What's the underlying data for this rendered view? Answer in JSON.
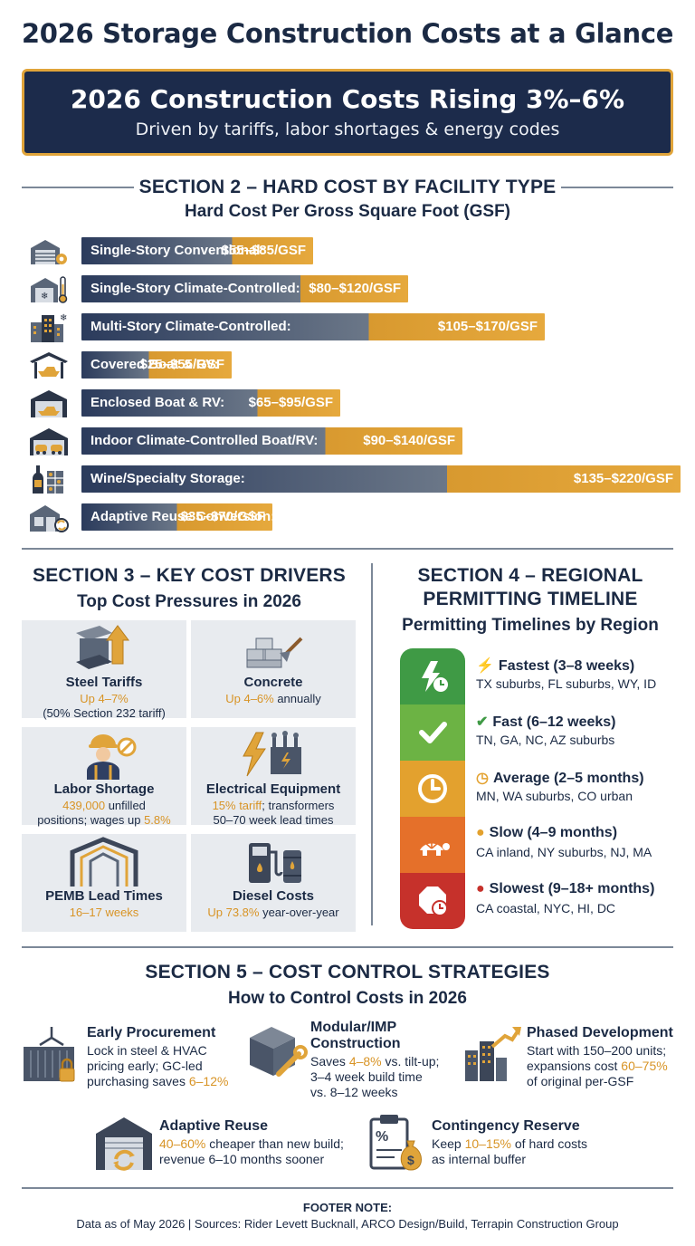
{
  "title": "2026 Storage Construction Costs at a Glance",
  "banner": {
    "headline": "2026 Construction Costs Rising 3%–6%",
    "subtitle": "Driven by tariffs, labor shortages & energy codes"
  },
  "colors": {
    "navy": "#1c2b4b",
    "gold": "#e0a43a",
    "slate": "#4d5d75",
    "green": "#3f9a45",
    "yellow": "#e3a12e",
    "orange": "#e5702a",
    "red": "#c6312b"
  },
  "section2": {
    "title": "SECTION 2 – HARD COST BY FACILITY TYPE",
    "subtitle": "Hard Cost Per Gross Square Foot (GSF)"
  },
  "chart_data": {
    "type": "bar",
    "orientation": "horizontal",
    "title": "Hard Cost Per Gross Square Foot (GSF)",
    "unit": "$/GSF",
    "categories": [
      "Single-Story Conventional:",
      "Single-Story Climate-Controlled:",
      "Multi-Story Climate-Controlled:",
      "Covered Boat & RV:",
      "Enclosed Boat & RV:",
      "Indoor Climate-Controlled Boat/RV:",
      "Wine/Specialty Storage:",
      "Adaptive Reuse Conversion:"
    ],
    "low": [
      55,
      80,
      105,
      25,
      65,
      90,
      135,
      35
    ],
    "high": [
      85,
      120,
      170,
      55,
      95,
      140,
      220,
      70
    ],
    "value_labels": [
      "$55–$85/GSF",
      "$80–$120/GSF",
      "$105–$170/GSF",
      "$25–$55/GSF",
      "$65–$95/GSF",
      "$90–$140/GSF",
      "$135–$220/GSF",
      "$35–$70/GSF"
    ],
    "icons": [
      "garage-gear-icon",
      "garage-thermometer-icon",
      "multistory-building-icon",
      "covered-boat-icon",
      "enclosed-boat-icon",
      "indoor-vehicle-icon",
      "wine-bottle-icon",
      "adaptive-reuse-icon"
    ]
  },
  "section3": {
    "title": "SECTION 3 – KEY COST DRIVERS",
    "subtitle": "Top Cost Pressures in 2026",
    "tiles": [
      {
        "icon": "steel-beam-arrow-icon",
        "title": "Steel Tariffs",
        "lines": [
          [
            "Up 4–7%",
            ""
          ],
          [
            "(50% Section 232 tariff)",
            ""
          ]
        ]
      },
      {
        "icon": "concrete-blocks-icon",
        "title": "Concrete",
        "lines": [
          [
            "Up 4–6%",
            " annually"
          ]
        ]
      },
      {
        "icon": "worker-icon",
        "title": "Labor Shortage",
        "lines": [
          [
            "439,000",
            " unfilled"
          ],
          [
            "positions; wages up ",
            "5.8%"
          ]
        ]
      },
      {
        "icon": "transformer-bolt-icon",
        "title": "Electrical Equipment",
        "lines": [
          [
            "15% tariff",
            "; transformers"
          ],
          [
            "50–70 week lead times",
            ""
          ]
        ]
      },
      {
        "icon": "pemb-frame-icon",
        "title": "PEMB Lead Times",
        "lines": [
          [
            "16–17 weeks",
            ""
          ]
        ]
      },
      {
        "icon": "fuel-pump-icon",
        "title": "Diesel Costs",
        "lines": [
          [
            "Up 73.8%",
            " year-over-year"
          ]
        ]
      }
    ]
  },
  "section4": {
    "title_line1": "SECTION 4 – REGIONAL",
    "title_line2": "PERMITTING TIMELINE",
    "subtitle": "Permitting Timelines by Region",
    "tiers": [
      {
        "name": "Fastest (3–8 weeks)",
        "regions": "TX suburbs, FL suburbs, WY, ID",
        "color": "#3f9a45",
        "icon": "lightning-clock-icon"
      },
      {
        "name": "Fast (6–12 weeks)",
        "regions": "TN, GA, NC, AZ suburbs",
        "color": "#6cb344",
        "icon": "checkmark-icon"
      },
      {
        "name": "Average (2–5 months)",
        "regions": "MN, WA suburbs, CO urban",
        "color": "#e3a12e",
        "icon": "clock-icon"
      },
      {
        "name": "Slow (4–9 months)",
        "regions": "CA inland, NY suburbs, NJ, MA",
        "color": "#e5702a",
        "icon": "turtle-icon"
      },
      {
        "name": "Slowest (9–18+ months)",
        "regions": "CA coastal, NYC, HI, DC",
        "color": "#c6312b",
        "icon": "stop-clock-icon"
      }
    ]
  },
  "section5": {
    "title": "SECTION 5 – COST CONTROL STRATEGIES",
    "subtitle": "How to Control Costs in 2026",
    "strategies": [
      {
        "icon": "container-lock-icon",
        "title": "Early Procurement",
        "lines": [
          [
            "Lock in steel & HVAC",
            ""
          ],
          [
            "pricing early; GC-led",
            ""
          ],
          [
            "purchasing saves ",
            "6–12%"
          ]
        ]
      },
      {
        "icon": "modular-box-wrench-icon",
        "title_lines": [
          "Modular/IMP",
          "Construction"
        ],
        "lines": [
          [
            "Saves ",
            "4–8%",
            " vs. tilt-up;"
          ],
          [
            "3–4 week build time",
            ""
          ],
          [
            "vs. 8–12 weeks",
            ""
          ]
        ]
      },
      {
        "icon": "buildings-growth-icon",
        "title": "Phased Development",
        "lines": [
          [
            "Start with 150–200 units;",
            ""
          ],
          [
            "expansions cost ",
            "60–75%"
          ],
          [
            "of original per-GSF",
            ""
          ]
        ]
      },
      {
        "icon": "garage-recycle-icon",
        "title": "Adaptive Reuse",
        "lines": [
          [
            "40–60%",
            " cheaper than new build;"
          ],
          [
            "revenue 6–10 months sooner",
            ""
          ]
        ]
      },
      {
        "icon": "clipboard-moneybag-icon",
        "title": "Contingency Reserve",
        "lines": [
          [
            "Keep ",
            "10–15%",
            " of hard costs"
          ],
          [
            "as internal buffer",
            ""
          ]
        ]
      }
    ]
  },
  "footer": {
    "heading": "FOOTER NOTE:",
    "text": "Data as of May 2026 | Sources: Rider Levett Bucknall, ARCO Design/Build, Terrapin Construction Group"
  }
}
